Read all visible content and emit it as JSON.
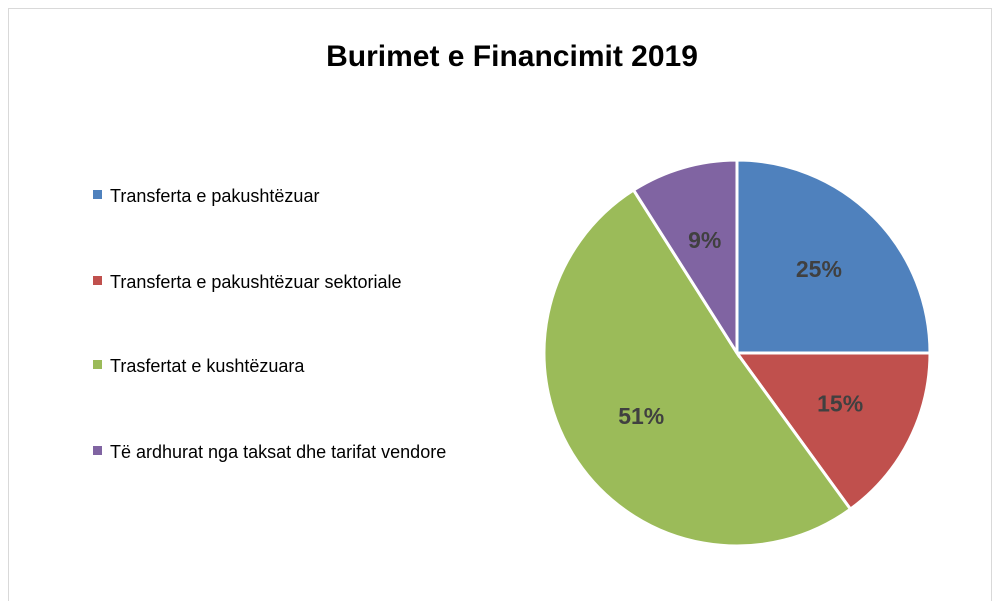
{
  "chart_data": {
    "type": "pie",
    "title": "Burimet e Financimit 2019",
    "categories": [
      "Transferta e pakushtëzuar",
      "Transferta e pakushtëzuar sektoriale",
      "Trasfertat e kushtëzuara",
      "Të ardhurat nga taksat dhe tarifat vendore"
    ],
    "values": [
      25,
      15,
      51,
      9
    ],
    "value_labels": [
      "25%",
      "15%",
      "51%",
      "9%"
    ],
    "colors": [
      "#4f81bd",
      "#c0504d",
      "#9bbb59",
      "#8064a2"
    ],
    "legend": "left"
  }
}
